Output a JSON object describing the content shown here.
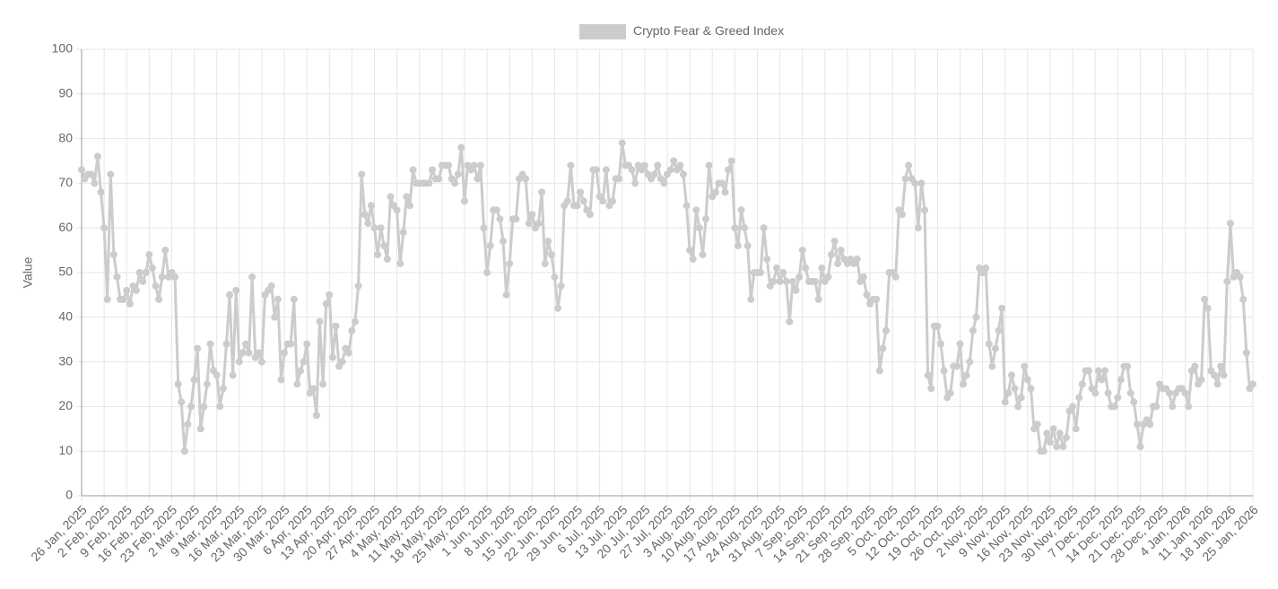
{
  "chart_data": {
    "type": "line",
    "y_label": "Value",
    "legend_position": "top",
    "grid": true,
    "ylim": [
      0,
      100
    ],
    "yticks": [
      0,
      10,
      20,
      30,
      40,
      50,
      60,
      70,
      80,
      90,
      100
    ],
    "categories": [
      "26 Jan, 2025",
      null,
      null,
      null,
      null,
      null,
      null,
      "2 Feb, 2025",
      null,
      null,
      null,
      null,
      null,
      null,
      "9 Feb, 2025",
      null,
      null,
      null,
      null,
      null,
      null,
      "16 Feb, 2025",
      null,
      null,
      null,
      null,
      null,
      null,
      "23 Feb, 2025",
      null,
      null,
      null,
      null,
      null,
      null,
      "2 Mar, 2025",
      null,
      null,
      null,
      null,
      null,
      null,
      "9 Mar, 2025",
      null,
      null,
      null,
      null,
      null,
      null,
      "16 Mar, 2025",
      null,
      null,
      null,
      null,
      null,
      null,
      "23 Mar, 2025",
      null,
      null,
      null,
      null,
      null,
      null,
      "30 Mar, 2025",
      null,
      null,
      null,
      null,
      null,
      null,
      "6 Apr, 2025",
      null,
      null,
      null,
      null,
      null,
      null,
      "13 Apr, 2025",
      null,
      null,
      null,
      null,
      null,
      null,
      "20 Apr, 2025",
      null,
      null,
      null,
      null,
      null,
      null,
      "27 Apr, 2025",
      null,
      null,
      null,
      null,
      null,
      null,
      "4 May, 2025",
      null,
      null,
      null,
      null,
      null,
      null,
      "11 May, 2025",
      null,
      null,
      null,
      null,
      null,
      null,
      "18 May, 2025",
      null,
      null,
      null,
      null,
      null,
      null,
      "25 May, 2025",
      null,
      null,
      null,
      null,
      null,
      null,
      "1 Jun, 2025",
      null,
      null,
      null,
      null,
      null,
      null,
      "8 Jun, 2025",
      null,
      null,
      null,
      null,
      null,
      null,
      "15 Jun, 2025",
      null,
      null,
      null,
      null,
      null,
      null,
      "22 Jun, 2025",
      null,
      null,
      null,
      null,
      null,
      null,
      "29 Jun, 2025",
      null,
      null,
      null,
      null,
      null,
      null,
      "6 Jul, 2025",
      null,
      null,
      null,
      null,
      null,
      null,
      "13 Jul, 2025",
      null,
      null,
      null,
      null,
      null,
      null,
      "20 Jul, 2025",
      null,
      null,
      null,
      null,
      null,
      null,
      "27 Jul, 2025",
      null,
      null,
      null,
      null,
      null,
      null,
      "3 Aug, 2025",
      null,
      null,
      null,
      null,
      null,
      null,
      "10 Aug, 2025",
      null,
      null,
      null,
      null,
      null,
      null,
      "17 Aug, 2025",
      null,
      null,
      null,
      null,
      null,
      null,
      "24 Aug, 2025",
      null,
      null,
      null,
      null,
      null,
      null,
      "31 Aug, 2025",
      null,
      null,
      null,
      null,
      null,
      null,
      "7 Sep, 2025",
      null,
      null,
      null,
      null,
      null,
      null,
      "14 Sep, 2025",
      null,
      null,
      null,
      null,
      null,
      null,
      "21 Sep, 2025",
      null,
      null,
      null,
      null,
      null,
      null,
      "28 Sep, 2025",
      null,
      null,
      null,
      null,
      null,
      null,
      "5 Oct, 2025",
      null,
      null,
      null,
      null,
      null,
      null,
      "12 Oct, 2025",
      null,
      null,
      null,
      null,
      null,
      null,
      "19 Oct, 2025",
      null,
      null,
      null,
      null,
      null,
      null,
      "26 Oct, 2025",
      null,
      null,
      null,
      null,
      null,
      null,
      "2 Nov, 2025",
      null,
      null,
      null,
      null,
      null,
      null,
      "9 Nov, 2025",
      null,
      null,
      null,
      null,
      null,
      null,
      "16 Nov, 2025",
      null,
      null,
      null,
      null,
      null,
      null,
      "23 Nov, 2025",
      null,
      null,
      null,
      null,
      null,
      null,
      "30 Nov, 2025",
      null,
      null,
      null,
      null,
      null,
      null,
      "7 Dec, 2025",
      null,
      null,
      null,
      null,
      null,
      null,
      "14 Dec, 2025",
      null,
      null,
      null,
      null,
      null,
      null,
      "21 Dec, 2025",
      null,
      null,
      null,
      null,
      null,
      null,
      "28 Dec, 2025",
      null,
      null,
      null,
      null,
      null,
      null,
      "4 Jan, 2026",
      null,
      null,
      null,
      null,
      null,
      null,
      "11 Jan, 2026",
      null,
      null,
      null,
      null,
      null,
      null,
      "18 Jan, 2026",
      null,
      null,
      null,
      null,
      null,
      null,
      "25 Jan, 2026"
    ],
    "series": [
      {
        "name": "Crypto Fear & Greed Index",
        "color": "#cccccc",
        "values": [
          73,
          71,
          72,
          72,
          70,
          76,
          68,
          60,
          44,
          72,
          54,
          49,
          44,
          44,
          46,
          43,
          47,
          46,
          50,
          48,
          50,
          54,
          51,
          47,
          44,
          49,
          55,
          49,
          50,
          49,
          25,
          21,
          10,
          16,
          20,
          26,
          33,
          15,
          20,
          25,
          34,
          28,
          27,
          20,
          24,
          34,
          45,
          27,
          46,
          30,
          32,
          34,
          32,
          49,
          31,
          32,
          30,
          45,
          46,
          47,
          40,
          44,
          26,
          32,
          34,
          34,
          44,
          25,
          28,
          30,
          34,
          23,
          24,
          18,
          39,
          25,
          43,
          45,
          31,
          38,
          29,
          30,
          33,
          32,
          37,
          39,
          47,
          72,
          63,
          61,
          65,
          60,
          54,
          60,
          56,
          53,
          67,
          65,
          64,
          52,
          59,
          67,
          65,
          73,
          70,
          70,
          70,
          70,
          70,
          73,
          71,
          71,
          74,
          74,
          74,
          71,
          70,
          72,
          78,
          66,
          74,
          73,
          74,
          71,
          74,
          60,
          50,
          56,
          64,
          64,
          62,
          57,
          45,
          52,
          62,
          62,
          71,
          72,
          71,
          61,
          63,
          60,
          61,
          68,
          52,
          57,
          54,
          49,
          42,
          47,
          65,
          66,
          74,
          65,
          65,
          68,
          66,
          64,
          63,
          73,
          73,
          67,
          66,
          73,
          65,
          66,
          71,
          71,
          79,
          74,
          74,
          73,
          70,
          74,
          73,
          74,
          72,
          71,
          72,
          74,
          71,
          70,
          72,
          73,
          75,
          73,
          74,
          72,
          65,
          55,
          53,
          64,
          60,
          54,
          62,
          74,
          67,
          68,
          70,
          70,
          68,
          73,
          75,
          60,
          56,
          64,
          60,
          56,
          44,
          50,
          50,
          50,
          60,
          53,
          47,
          48,
          51,
          48,
          50,
          48,
          39,
          48,
          46,
          49,
          55,
          51,
          48,
          48,
          48,
          44,
          51,
          48,
          49,
          54,
          57,
          52,
          55,
          53,
          52,
          53,
          52,
          53,
          48,
          49,
          45,
          43,
          44,
          44,
          28,
          33,
          37,
          50,
          50,
          49,
          64,
          63,
          71,
          74,
          71,
          70,
          60,
          70,
          64,
          27,
          24,
          38,
          38,
          34,
          28,
          22,
          23,
          29,
          29,
          34,
          25,
          27,
          30,
          37,
          40,
          51,
          50,
          51,
          34,
          29,
          33,
          37,
          42,
          21,
          23,
          27,
          24,
          20,
          22,
          29,
          26,
          24,
          15,
          16,
          10,
          10,
          14,
          12,
          15,
          11,
          14,
          11,
          13,
          19,
          20,
          15,
          22,
          25,
          28,
          28,
          24,
          23,
          28,
          26,
          28,
          23,
          20,
          20,
          22,
          26,
          29,
          29,
          23,
          21,
          16,
          11,
          16,
          17,
          16,
          20,
          20,
          25,
          24,
          24,
          23,
          20,
          23,
          24,
          24,
          23,
          20,
          28,
          29,
          25,
          26,
          44,
          42,
          28,
          27,
          25,
          29,
          27,
          48,
          61,
          49,
          50,
          49,
          44,
          32,
          24,
          25
        ]
      }
    ]
  }
}
